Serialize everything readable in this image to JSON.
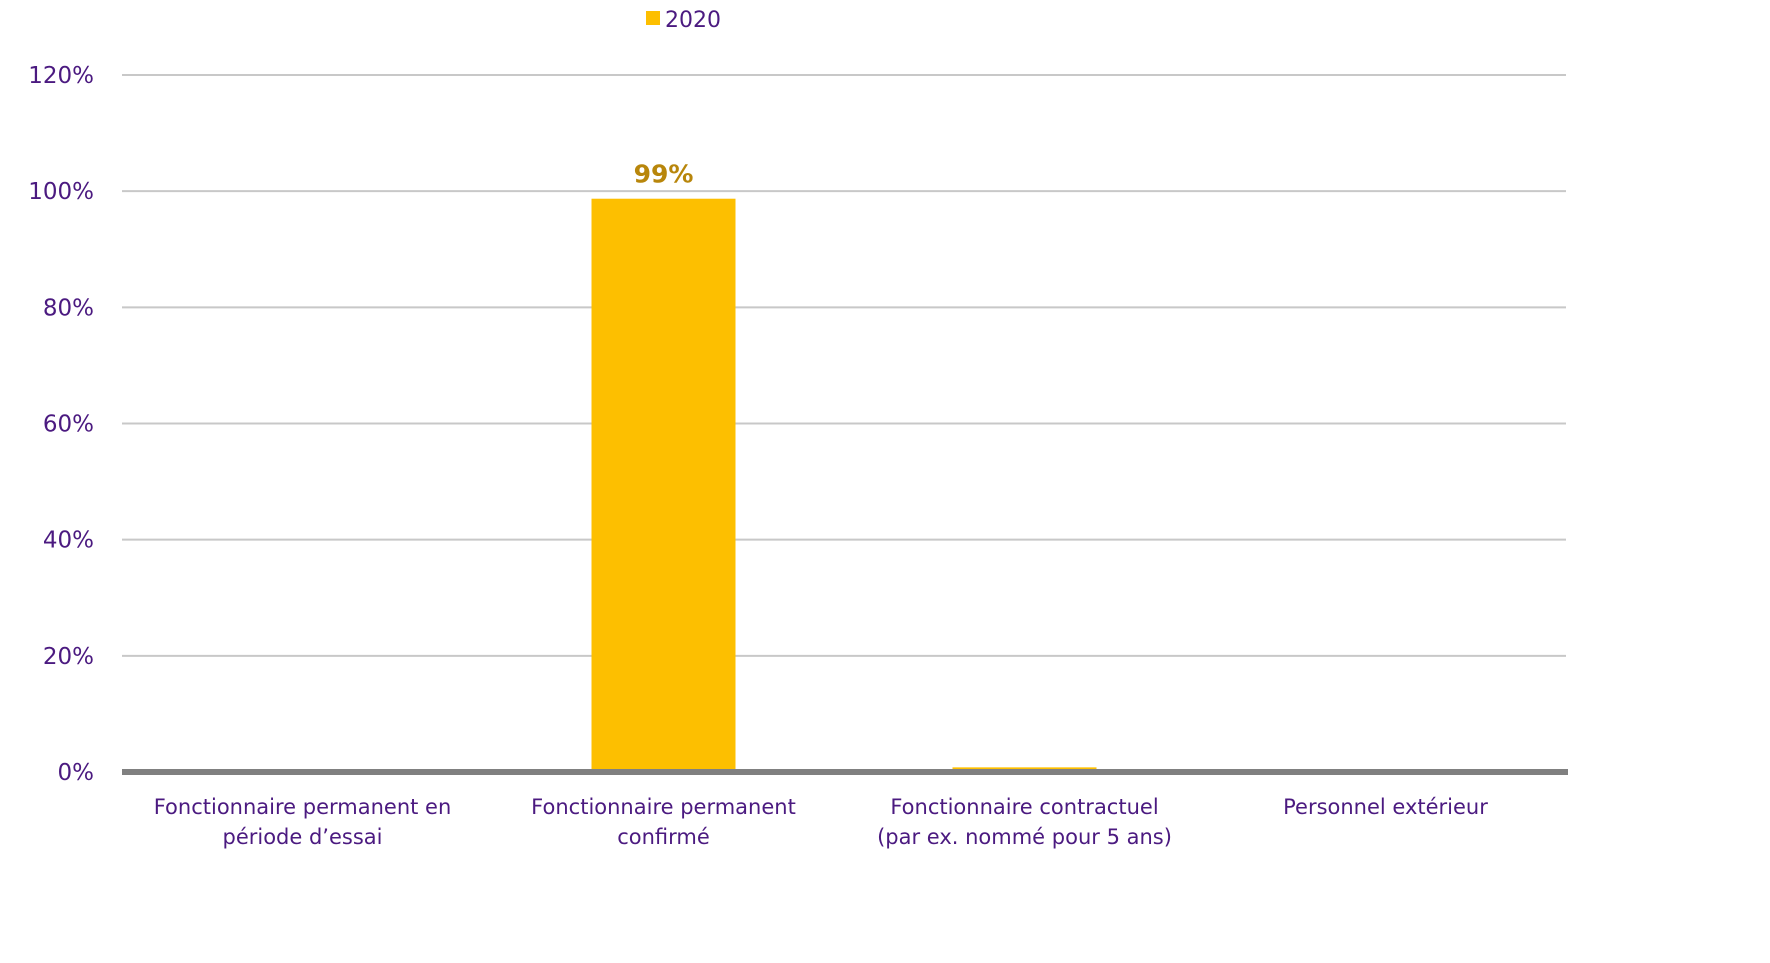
{
  "chart_data": {
    "type": "bar",
    "categories": [
      [
        "Fonctionnaire permanent en",
        "période d’essai"
      ],
      [
        "Fonctionnaire permanent",
        "confirmé"
      ],
      [
        "Fonctionnaire contractuel",
        "(par ex. nommé pour 5 ans)"
      ],
      [
        "Personnel extérieur"
      ]
    ],
    "series": [
      {
        "name": "2020",
        "values": [
          0,
          98.7,
          0.8,
          0
        ],
        "data_labels": [
          "",
          "99%",
          "",
          ""
        ],
        "color": "#fdbf00"
      }
    ],
    "ylim": [
      0,
      120
    ],
    "yticks": [
      0,
      20,
      40,
      60,
      80,
      100,
      120
    ],
    "ytick_labels": [
      "0%",
      "20%",
      "40%",
      "60%",
      "80%",
      "100%",
      "120%"
    ],
    "grid": true,
    "legend_position": "top",
    "colors": {
      "text": "#4b1a80",
      "data_label": "#b8860b",
      "grid": "#c8c8c8",
      "axis": "#808080"
    }
  }
}
